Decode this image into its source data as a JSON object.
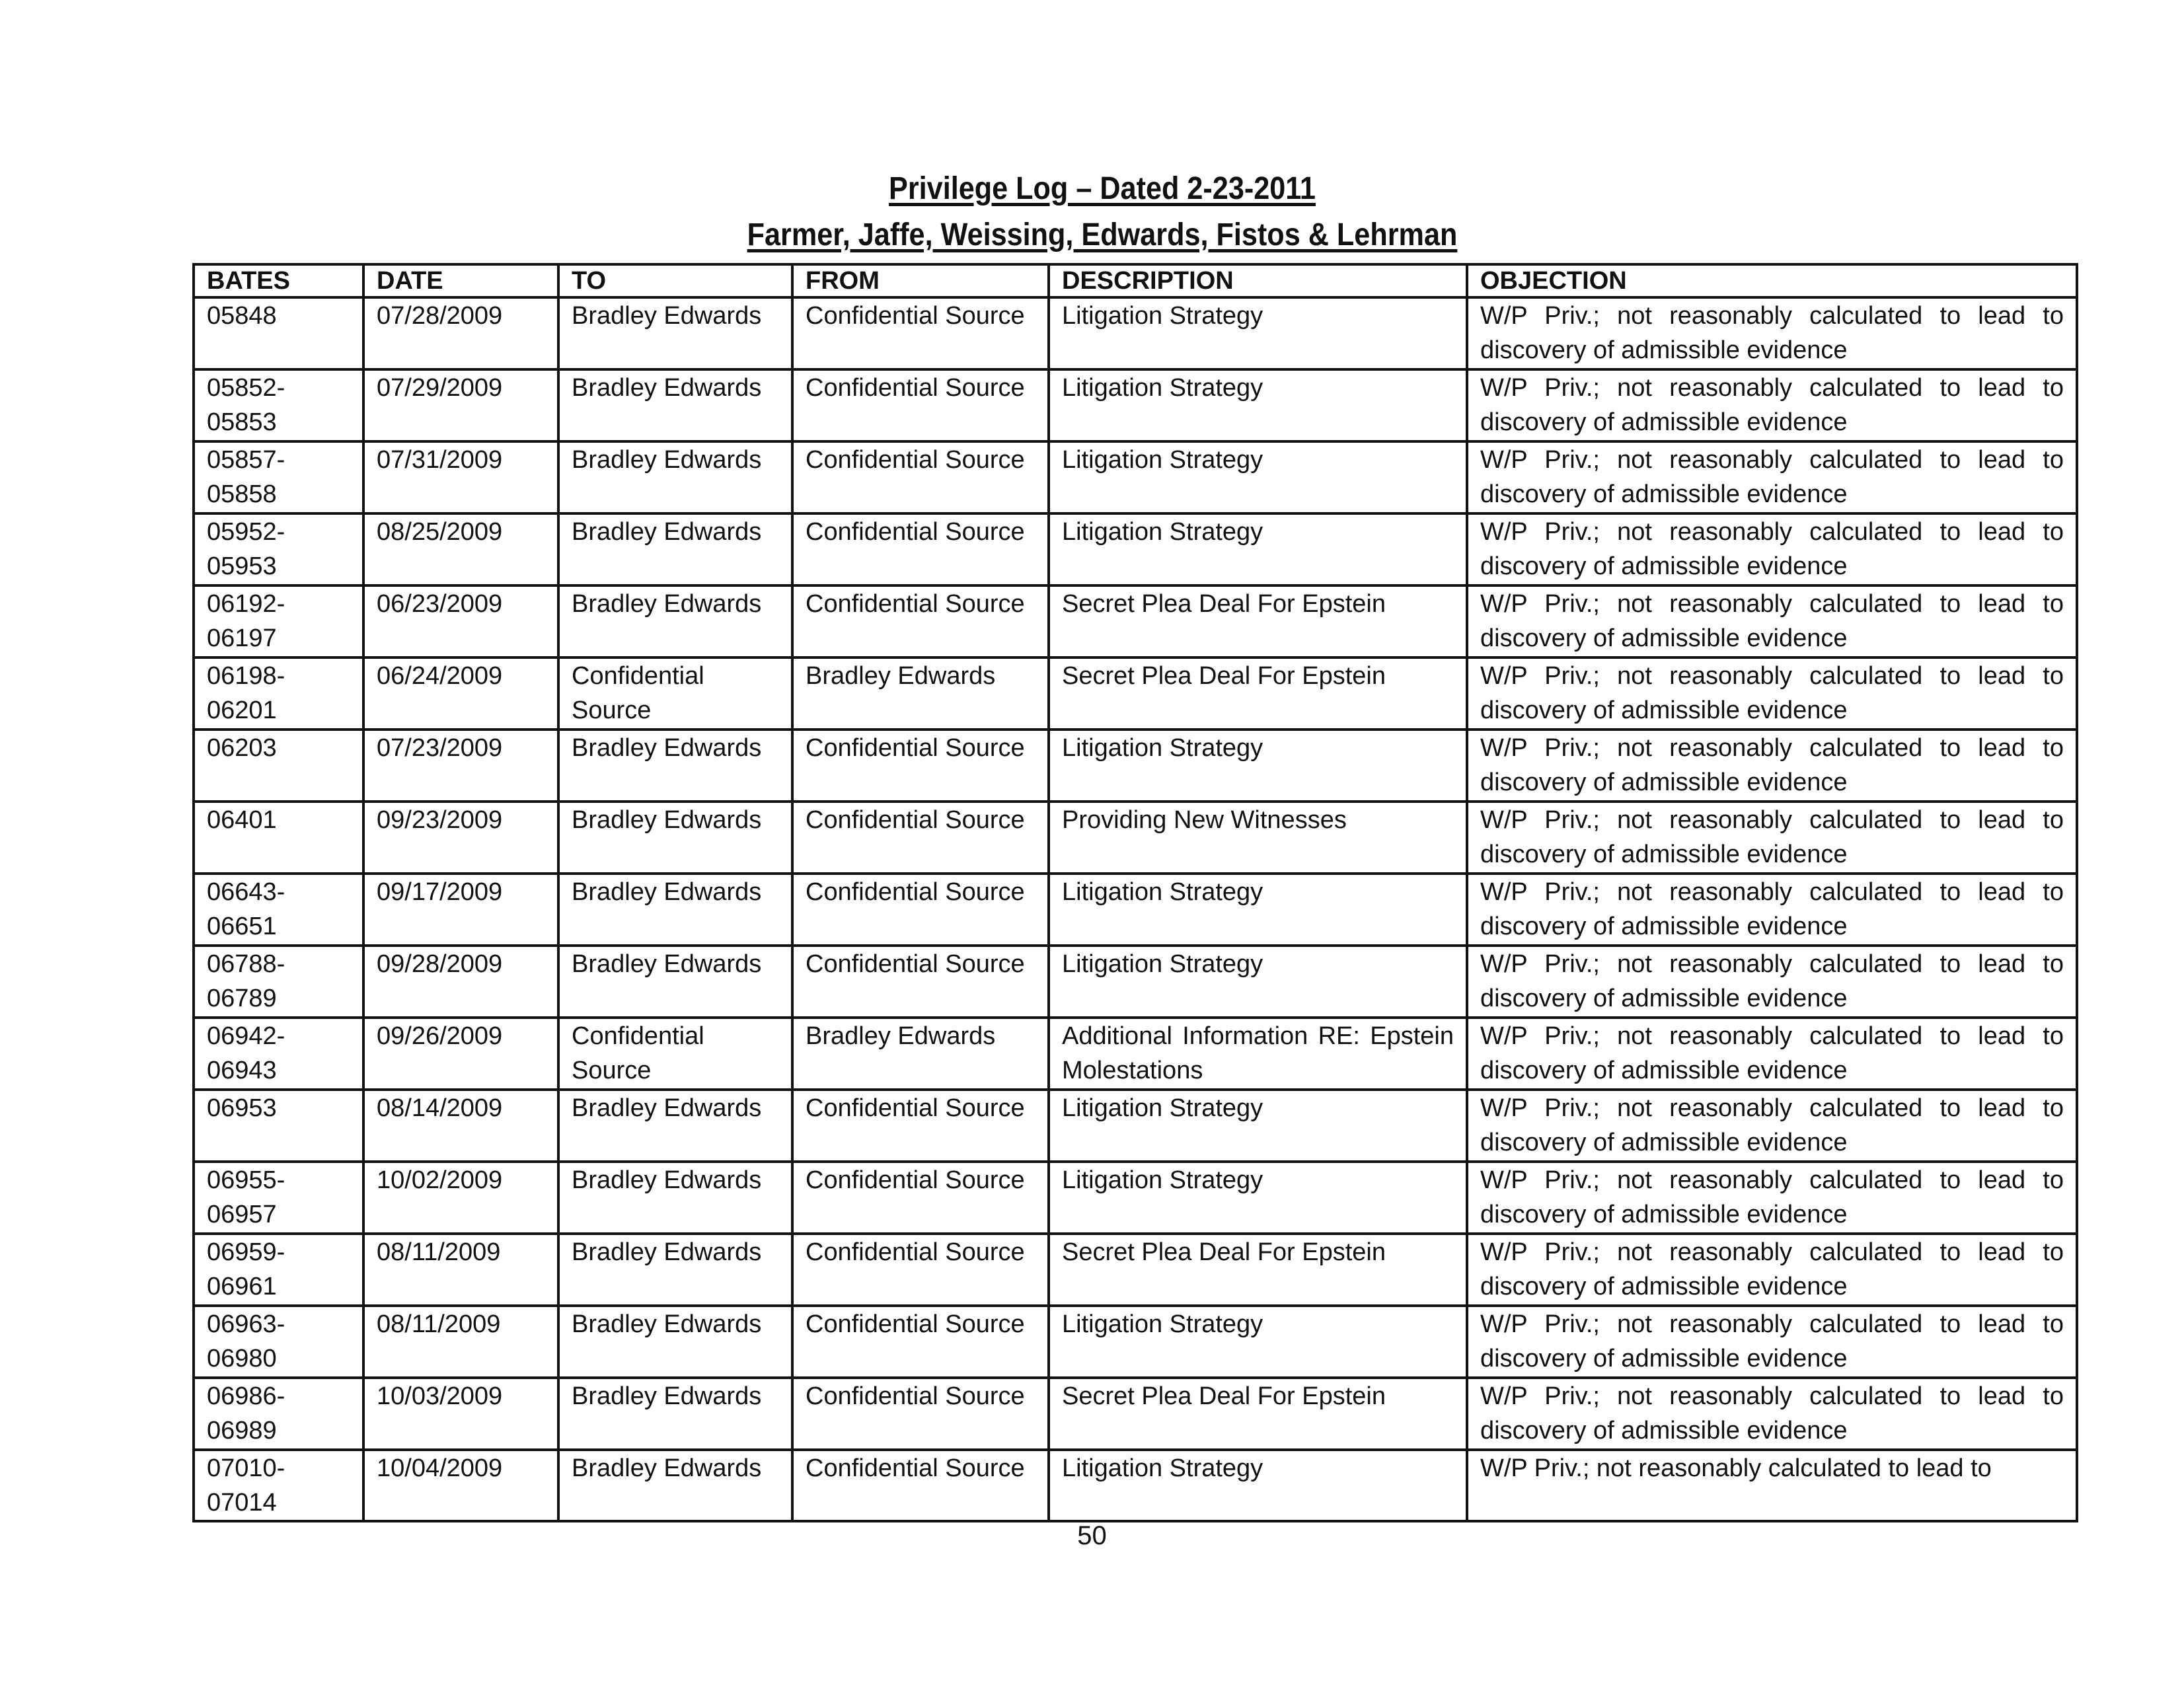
{
  "header": {
    "title": "Privilege Log – Dated 2-23-2011",
    "subtitle": "Farmer, Jaffe, Weissing, Edwards, Fistos & Lehrman"
  },
  "table": {
    "columns": [
      "BATES",
      "DATE",
      "TO",
      "FROM",
      "DESCRIPTION",
      "OBJECTION"
    ],
    "rows": [
      [
        "05848",
        "07/28/2009",
        "Bradley Edwards",
        "Confidential Source",
        "Litigation Strategy",
        "W/P Priv.; not reasonably calculated to lead to discovery of admissible evidence"
      ],
      [
        "05852-05853",
        "07/29/2009",
        "Bradley Edwards",
        "Confidential Source",
        "Litigation Strategy",
        "W/P Priv.; not reasonably calculated to lead to discovery of admissible evidence"
      ],
      [
        "05857-05858",
        "07/31/2009",
        "Bradley Edwards",
        "Confidential Source",
        "Litigation Strategy",
        "W/P Priv.; not reasonably calculated to lead to discovery of admissible evidence"
      ],
      [
        "05952-05953",
        "08/25/2009",
        "Bradley Edwards",
        "Confidential Source",
        "Litigation Strategy",
        "W/P Priv.; not reasonably calculated to lead to discovery of admissible evidence"
      ],
      [
        "06192-06197",
        "06/23/2009",
        "Bradley Edwards",
        "Confidential Source",
        "Secret Plea Deal For Epstein",
        "W/P Priv.; not reasonably calculated to lead to discovery of admissible evidence"
      ],
      [
        "06198-06201",
        "06/24/2009",
        "Confidential Source",
        "Bradley Edwards",
        "Secret Plea Deal For Epstein",
        "W/P Priv.; not reasonably calculated to lead to discovery of admissible evidence"
      ],
      [
        "06203",
        "07/23/2009",
        "Bradley Edwards",
        "Confidential Source",
        "Litigation Strategy",
        "W/P Priv.; not reasonably calculated to lead to discovery of admissible evidence"
      ],
      [
        "06401",
        "09/23/2009",
        "Bradley Edwards",
        "Confidential Source",
        "Providing New Witnesses",
        "W/P Priv.; not reasonably calculated to lead to discovery of admissible evidence"
      ],
      [
        "06643-06651",
        "09/17/2009",
        "Bradley Edwards",
        "Confidential Source",
        "Litigation Strategy",
        "W/P Priv.; not reasonably calculated to lead to discovery of admissible evidence"
      ],
      [
        "06788-06789",
        "09/28/2009",
        "Bradley Edwards",
        "Confidential Source",
        "Litigation Strategy",
        "W/P Priv.; not reasonably calculated to lead to discovery of admissible evidence"
      ],
      [
        "06942-06943",
        "09/26/2009",
        "Confidential Source",
        "Bradley Edwards",
        "Additional Information RE: Epstein Molestations",
        "W/P Priv.; not reasonably calculated to lead to discovery of admissible evidence"
      ],
      [
        "06953",
        "08/14/2009",
        "Bradley Edwards",
        "Confidential Source",
        "Litigation Strategy",
        "W/P Priv.; not reasonably calculated to lead to discovery of admissible evidence"
      ],
      [
        "06955-06957",
        "10/02/2009",
        "Bradley Edwards",
        "Confidential Source",
        "Litigation Strategy",
        "W/P Priv.; not reasonably calculated to lead to discovery of admissible evidence"
      ],
      [
        "06959-06961",
        "08/11/2009",
        "Bradley Edwards",
        "Confidential Source",
        "Secret Plea Deal For Epstein",
        "W/P Priv.; not reasonably calculated to lead to discovery of admissible evidence"
      ],
      [
        "06963-06980",
        "08/11/2009",
        "Bradley Edwards",
        "Confidential Source",
        "Litigation Strategy",
        "W/P Priv.; not reasonably calculated to lead to discovery of admissible evidence"
      ],
      [
        "06986-06989",
        "10/03/2009",
        "Bradley Edwards",
        "Confidential Source",
        "Secret Plea Deal For Epstein",
        "W/P Priv.; not reasonably calculated to lead to discovery of admissible evidence"
      ],
      [
        "07010-07014",
        "10/04/2009",
        "Bradley Edwards",
        "Confidential Source",
        "Litigation Strategy",
        "W/P Priv.; not reasonably calculated to lead to"
      ]
    ]
  },
  "footer": {
    "page_number": "50"
  }
}
